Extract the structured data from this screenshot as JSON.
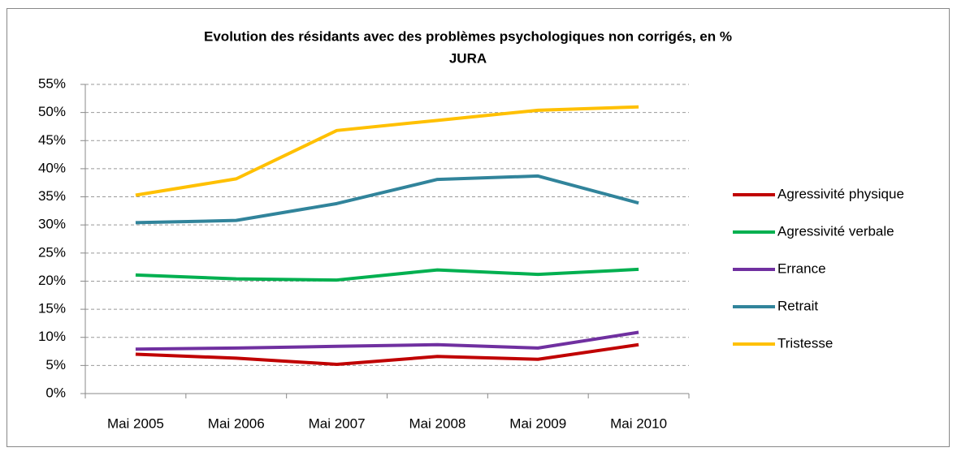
{
  "chart_data": {
    "type": "line",
    "title": "Evolution des résidants avec des problèmes psychologiques non corrigés, en %",
    "subtitle": "JURA",
    "categories": [
      "Mai 2005",
      "Mai 2006",
      "Mai 2007",
      "Mai 2008",
      "Mai 2009",
      "Mai 2010"
    ],
    "series": [
      {
        "name": "Agressivité physique",
        "color": "#c00000",
        "values": [
          7.0,
          6.3,
          5.2,
          6.6,
          6.1,
          8.7
        ]
      },
      {
        "name": "Agressivité verbale",
        "color": "#00b050",
        "values": [
          21.1,
          20.4,
          20.2,
          22.0,
          21.2,
          22.1
        ]
      },
      {
        "name": "Errance",
        "color": "#7030a0",
        "values": [
          7.9,
          8.1,
          8.4,
          8.7,
          8.1,
          10.9
        ]
      },
      {
        "name": "Retrait",
        "color": "#31849b",
        "values": [
          30.4,
          30.8,
          33.8,
          38.1,
          38.7,
          33.9
        ]
      },
      {
        "name": "Tristesse",
        "color": "#ffc000",
        "values": [
          35.3,
          38.2,
          46.8,
          48.6,
          50.4,
          51.0
        ]
      }
    ],
    "ylim": [
      0,
      55
    ],
    "yticks": [
      {
        "value": 0,
        "label": "0%"
      },
      {
        "value": 5,
        "label": "5%"
      },
      {
        "value": 10,
        "label": "10%"
      },
      {
        "value": 15,
        "label": "15%"
      },
      {
        "value": 20,
        "label": "20%"
      },
      {
        "value": 25,
        "label": "25%"
      },
      {
        "value": 30,
        "label": "30%"
      },
      {
        "value": 35,
        "label": "35%"
      },
      {
        "value": 40,
        "label": "40%"
      },
      {
        "value": 45,
        "label": "45%"
      },
      {
        "value": 50,
        "label": "50%"
      },
      {
        "value": 55,
        "label": "55%"
      }
    ],
    "grid": true,
    "legend": "right"
  }
}
